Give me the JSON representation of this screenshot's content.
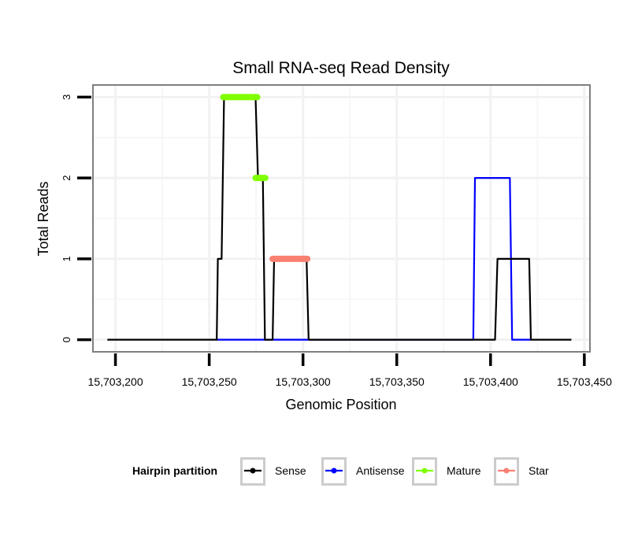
{
  "chart_data": {
    "type": "line",
    "title": "Small RNA-seq Read Density",
    "xlabel": "Genomic Position",
    "ylabel": "Total Reads",
    "xlim": [
      15703188,
      15703453
    ],
    "ylim": [
      -0.15,
      3.15
    ],
    "x_ticks": [
      15703200,
      15703250,
      15703300,
      15703350,
      15703400,
      15703450
    ],
    "x_tick_labels": [
      "15,703,200",
      "15,703,250",
      "15,703,300",
      "15,703,350",
      "15,703,400",
      "15,703,450"
    ],
    "y_ticks": [
      0,
      1,
      2,
      3
    ],
    "y_tick_labels": [
      "0",
      "1",
      "2",
      "3"
    ],
    "grid": true,
    "legend": {
      "title": "Hairpin partition",
      "placement": "bottom",
      "entries": [
        "Sense",
        "Antisense",
        "Mature",
        "Star"
      ]
    },
    "series": [
      {
        "name": "Antisense",
        "color": "#0000ff",
        "style": "line",
        "x": [
          15703254,
          15703390.8,
          15703391.7,
          15703410.3,
          15703411.5,
          15703421.5
        ],
        "y": [
          0,
          0,
          2,
          2,
          0,
          0
        ]
      },
      {
        "name": "Sense",
        "color": "#000000",
        "style": "line",
        "x": [
          15703195.7,
          15703254.0,
          15703254.6,
          15703256.6,
          15703257.9,
          15703274.7,
          15703276.0,
          15703278.6,
          15703279.7,
          15703283.8,
          15703284.6,
          15703301.9,
          15703303.0,
          15703402.4,
          15703403.7,
          15703420.6,
          15703421.5,
          15703443.1
        ],
        "y": [
          0,
          0,
          1,
          1,
          3,
          3,
          2,
          2,
          0,
          0,
          1,
          1,
          0,
          0,
          1,
          1,
          0,
          0
        ]
      },
      {
        "name": "Mature",
        "color": "#80ff00",
        "style": "thick-segment",
        "segments": [
          {
            "x0": 15703257.5,
            "x1": 15703275.6,
            "y": 3
          },
          {
            "x0": 15703274.7,
            "x1": 15703279.9,
            "y": 2
          }
        ]
      },
      {
        "name": "Star",
        "color": "#fa8072",
        "style": "thick-segment",
        "segments": [
          {
            "x0": 15703283.8,
            "x1": 15703302.3,
            "y": 1
          }
        ]
      }
    ]
  }
}
